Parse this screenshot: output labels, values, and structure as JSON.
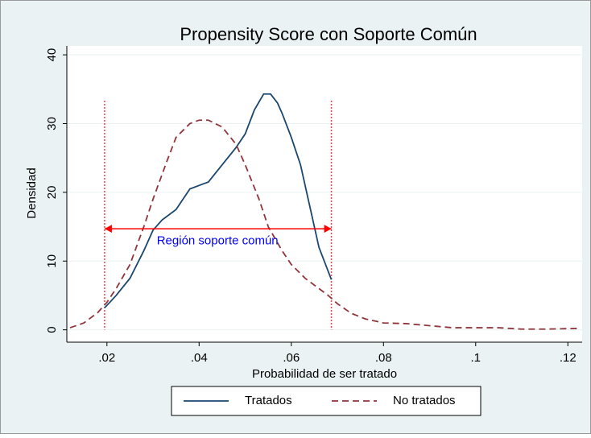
{
  "chart_data": {
    "type": "line",
    "title": "Propensity Score con Soporte Común",
    "x_label": "Probabilidad de ser tratado",
    "y_label": "Densidad",
    "xlim": [
      0.0113,
      0.1231
    ],
    "ylim": [
      -1.8,
      41.3
    ],
    "xticks": [
      {
        "value": 0.02,
        "label": ".02"
      },
      {
        "value": 0.04,
        "label": ".04"
      },
      {
        "value": 0.06,
        "label": ".06"
      },
      {
        "value": 0.08,
        "label": ".08"
      },
      {
        "value": 0.1,
        "label": ".1"
      },
      {
        "value": 0.12,
        "label": ".12"
      }
    ],
    "yticks": [
      0,
      10,
      20,
      30,
      40
    ],
    "grid": true,
    "series": [
      {
        "name": "Tratados",
        "color": "#1a476f",
        "dash": "solid",
        "x": [
          0.0195,
          0.022,
          0.025,
          0.028,
          0.03,
          0.032,
          0.035,
          0.038,
          0.04,
          0.042,
          0.045,
          0.048,
          0.05,
          0.052,
          0.054,
          0.0555,
          0.057,
          0.058,
          0.06,
          0.062,
          0.064,
          0.066,
          0.0687
        ],
        "values": [
          3.2,
          5,
          7.5,
          11.5,
          14.5,
          16,
          17.5,
          20.5,
          21,
          21.5,
          24,
          26.5,
          28.5,
          32,
          34.3,
          34.3,
          33,
          31.5,
          28,
          24,
          18,
          12,
          7.3
        ]
      },
      {
        "name": "No tratados",
        "color": "#90353b",
        "dash": "dashed",
        "x": [
          0.012,
          0.015,
          0.018,
          0.02,
          0.022,
          0.025,
          0.028,
          0.03,
          0.033,
          0.035,
          0.038,
          0.04,
          0.042,
          0.045,
          0.048,
          0.05,
          0.053,
          0.055,
          0.058,
          0.06,
          0.063,
          0.066,
          0.068,
          0.07,
          0.073,
          0.076,
          0.08,
          0.085,
          0.09,
          0.095,
          0.1,
          0.105,
          0.11,
          0.115,
          0.122
        ],
        "values": [
          0.3,
          1,
          2.5,
          4,
          6,
          9.5,
          15,
          19,
          24.5,
          28,
          30,
          30.5,
          30.5,
          29.5,
          27,
          24,
          19,
          15,
          11.5,
          9.5,
          7.5,
          6,
          5,
          3.8,
          2.4,
          1.6,
          1.0,
          0.9,
          0.6,
          0.3,
          0.3,
          0.3,
          0.1,
          0.1,
          0.2
        ]
      }
    ],
    "reference_lines": {
      "color": "#ff0000",
      "x": [
        0.0195,
        0.0687
      ],
      "top": 33.3
    },
    "arrow": {
      "color": "#ff0000",
      "y": 14.7,
      "x": [
        0.0195,
        0.0687
      ],
      "label": "Región soporte común",
      "label_x": 0.044,
      "label_y": 12.9,
      "label_color": "#0000ff"
    },
    "legend": "bottom"
  }
}
